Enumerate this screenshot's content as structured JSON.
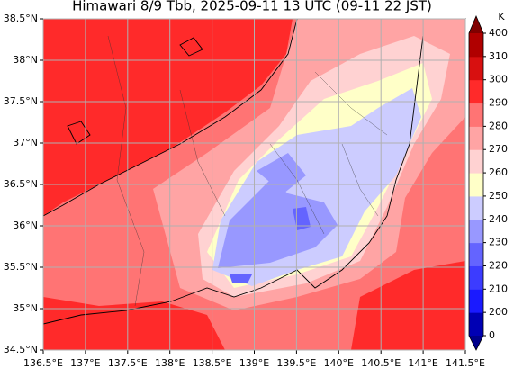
{
  "title": "Himawari 8/9 Tbb, 2025-09-11 13 UTC (09-11 22 JST)",
  "map": {
    "xlim": [
      136.5,
      141.5
    ],
    "ylim": [
      34.5,
      38.5
    ],
    "xticks": [
      {
        "value": 136.5,
        "label": "136.5°E"
      },
      {
        "value": 137,
        "label": "137°E"
      },
      {
        "value": 137.5,
        "label": "137.5°E"
      },
      {
        "value": 138,
        "label": "138°E"
      },
      {
        "value": 138.5,
        "label": "138.5°E"
      },
      {
        "value": 139,
        "label": "139°E"
      },
      {
        "value": 139.5,
        "label": "139.5°E"
      },
      {
        "value": 140,
        "label": "140°E"
      },
      {
        "value": 140.5,
        "label": "140.5°E"
      },
      {
        "value": 141,
        "label": "141°E"
      },
      {
        "value": 141.5,
        "label": "141.5°E"
      }
    ],
    "yticks": [
      {
        "value": 34.5,
        "label": "34.5°N"
      },
      {
        "value": 35,
        "label": "35°N"
      },
      {
        "value": 35.5,
        "label": "35.5°N"
      },
      {
        "value": 36,
        "label": "36°N"
      },
      {
        "value": 36.5,
        "label": "36.5°N"
      },
      {
        "value": 37,
        "label": "37°N"
      },
      {
        "value": 37.5,
        "label": "37.5°N"
      },
      {
        "value": 38,
        "label": "38°N"
      },
      {
        "value": 38.5,
        "label": "38.5°N"
      }
    ],
    "grid": true
  },
  "colorbar": {
    "unit": "K",
    "levels": [
      0,
      200,
      210,
      220,
      230,
      240,
      250,
      260,
      270,
      280,
      290,
      300,
      310,
      400
    ],
    "colors": [
      "#0000b4",
      "#1a1aff",
      "#3c3cff",
      "#6464ff",
      "#9898ff",
      "#ccccff",
      "#ffffc8",
      "#ffd2d2",
      "#ffa4a4",
      "#ff7474",
      "#ff2a2a",
      "#d81010",
      "#b00000"
    ],
    "extend_colors": [
      "#00008b",
      "#800000"
    ]
  }
}
